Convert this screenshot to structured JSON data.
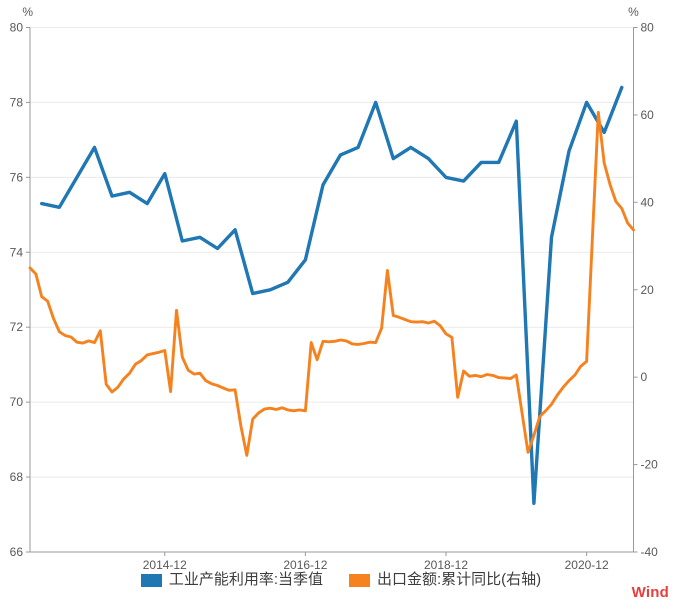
{
  "page": {
    "background": "#ffffff"
  },
  "watermark": {
    "label": "Wind",
    "color": "#e83e3e"
  },
  "chart_data": {
    "type": "line",
    "title": "",
    "grid": "horizontal-only",
    "grid_color": "#eaeaea",
    "axis_color": "#999999",
    "tick_label_color": "#595959",
    "legend_position": "bottom",
    "left_axis": {
      "unit": "%",
      "min": 66,
      "max": 80,
      "ticks": [
        66,
        68,
        70,
        72,
        74,
        76,
        78,
        80
      ]
    },
    "right_axis": {
      "unit": "%",
      "min": -40,
      "max": 80,
      "ticks": [
        -40,
        -20,
        0,
        20,
        40,
        60,
        80
      ]
    },
    "x_axis": {
      "start": "2013-01",
      "end": "2021-08",
      "tick_labels": [
        "2014-12",
        "2016-12",
        "2018-12",
        "2020-12"
      ]
    },
    "series": [
      {
        "name": "工业产能利用率:当季值",
        "axis": "left",
        "color": "#1f77b4",
        "line_width": 3.4,
        "x": [
          "2013-03",
          "2013-06",
          "2013-09",
          "2013-12",
          "2014-03",
          "2014-06",
          "2014-09",
          "2014-12",
          "2015-03",
          "2015-06",
          "2015-09",
          "2015-12",
          "2016-03",
          "2016-06",
          "2016-09",
          "2016-12",
          "2017-03",
          "2017-06",
          "2017-09",
          "2017-12",
          "2018-03",
          "2018-06",
          "2018-09",
          "2018-12",
          "2019-03",
          "2019-06",
          "2019-09",
          "2019-12",
          "2020-03",
          "2020-06",
          "2020-09",
          "2020-12",
          "2021-03",
          "2021-06"
        ],
        "values": [
          75.3,
          75.2,
          76.0,
          76.8,
          75.5,
          75.6,
          75.3,
          76.1,
          74.3,
          74.4,
          74.1,
          74.6,
          72.9,
          73.0,
          73.2,
          73.8,
          75.8,
          76.6,
          76.8,
          78.0,
          76.5,
          76.8,
          76.5,
          76.0,
          75.9,
          76.4,
          76.4,
          77.5,
          67.3,
          74.4,
          76.7,
          78.0,
          77.2,
          78.4
        ]
      },
      {
        "name": "出口金额:累计同比(右轴)",
        "axis": "right",
        "color": "#f5821f",
        "line_width": 2.9,
        "x": [
          "2013-01",
          "2013-02",
          "2013-03",
          "2013-04",
          "2013-05",
          "2013-06",
          "2013-07",
          "2013-08",
          "2013-09",
          "2013-10",
          "2013-11",
          "2013-12",
          "2014-01",
          "2014-02",
          "2014-03",
          "2014-04",
          "2014-05",
          "2014-06",
          "2014-07",
          "2014-08",
          "2014-09",
          "2014-10",
          "2014-11",
          "2014-12",
          "2015-01",
          "2015-02",
          "2015-03",
          "2015-04",
          "2015-05",
          "2015-06",
          "2015-07",
          "2015-08",
          "2015-09",
          "2015-10",
          "2015-11",
          "2015-12",
          "2016-01",
          "2016-02",
          "2016-03",
          "2016-04",
          "2016-05",
          "2016-06",
          "2016-07",
          "2016-08",
          "2016-09",
          "2016-10",
          "2016-11",
          "2016-12",
          "2017-01",
          "2017-02",
          "2017-03",
          "2017-04",
          "2017-05",
          "2017-06",
          "2017-07",
          "2017-08",
          "2017-09",
          "2017-10",
          "2017-11",
          "2017-12",
          "2018-01",
          "2018-02",
          "2018-03",
          "2018-04",
          "2018-05",
          "2018-06",
          "2018-07",
          "2018-08",
          "2018-09",
          "2018-10",
          "2018-11",
          "2018-12",
          "2019-01",
          "2019-02",
          "2019-03",
          "2019-04",
          "2019-05",
          "2019-06",
          "2019-07",
          "2019-08",
          "2019-09",
          "2019-10",
          "2019-11",
          "2019-12",
          "2020-02",
          "2020-03",
          "2020-04",
          "2020-05",
          "2020-06",
          "2020-07",
          "2020-08",
          "2020-09",
          "2020-10",
          "2020-11",
          "2020-12",
          "2021-02",
          "2021-03",
          "2021-04",
          "2021-05",
          "2021-06",
          "2021-07",
          "2021-08"
        ],
        "values": [
          25.0,
          23.6,
          18.4,
          17.4,
          13.5,
          10.4,
          9.5,
          9.2,
          8.0,
          7.8,
          8.3,
          7.9,
          10.6,
          -1.6,
          -3.4,
          -2.3,
          -0.4,
          0.9,
          3.0,
          3.8,
          5.1,
          5.4,
          5.7,
          6.1,
          -3.3,
          15.3,
          4.6,
          1.6,
          0.7,
          0.9,
          -0.8,
          -1.5,
          -1.9,
          -2.5,
          -3.0,
          -2.9,
          -11.2,
          -17.9,
          -9.6,
          -8.2,
          -7.3,
          -7.1,
          -7.4,
          -7.0,
          -7.5,
          -7.7,
          -7.5,
          -7.7,
          7.9,
          4.0,
          8.2,
          8.1,
          8.2,
          8.5,
          8.3,
          7.6,
          7.5,
          7.7,
          8.0,
          7.9,
          11.2,
          24.4,
          14.1,
          13.7,
          13.2,
          12.7,
          12.6,
          12.7,
          12.4,
          12.8,
          11.8,
          9.9,
          9.1,
          -4.6,
          1.4,
          0.2,
          0.4,
          0.1,
          0.6,
          0.4,
          -0.1,
          -0.2,
          -0.3,
          0.5,
          -17.2,
          -13.3,
          -9.0,
          -7.7,
          -6.2,
          -4.1,
          -2.3,
          -0.8,
          0.5,
          2.5,
          3.6,
          60.6,
          49.0,
          44.0,
          40.2,
          38.6,
          35.3,
          33.7
        ]
      }
    ]
  }
}
